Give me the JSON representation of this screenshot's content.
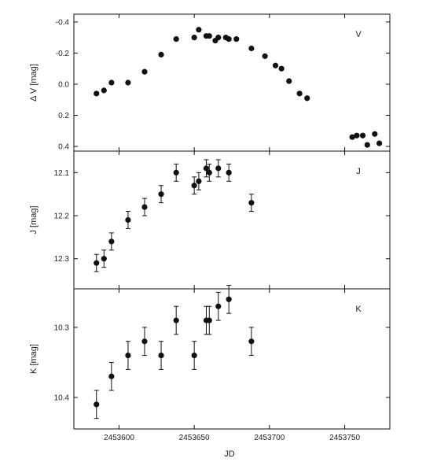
{
  "chart_data": [
    {
      "type": "scatter",
      "panel_label": "V",
      "ylabel": "Δ V [mag]",
      "xlabel": "",
      "y_inverted": true,
      "ylim": [
        0.43,
        -0.45
      ],
      "yticks": [
        -0.4,
        -0.2,
        0.0,
        0.2,
        0.4
      ],
      "ytick_labels": [
        "-0.4",
        "-0.2",
        "0.0",
        "0.2",
        "0.4"
      ],
      "error_bars": false,
      "series": [
        {
          "x": [
            2453585,
            2453590,
            2453595,
            2453606,
            2453617,
            2453628,
            2453638,
            2453650,
            2453653,
            2453658,
            2453660,
            2453664,
            2453666,
            2453671,
            2453673,
            2453678,
            2453688,
            2453697,
            2453704,
            2453708,
            2453713,
            2453720,
            2453725,
            2453755,
            2453758,
            2453762,
            2453765,
            2453770,
            2453773
          ],
          "y": [
            0.06,
            0.04,
            -0.01,
            -0.01,
            -0.08,
            -0.19,
            -0.29,
            -0.3,
            -0.35,
            -0.31,
            -0.31,
            -0.28,
            -0.3,
            -0.3,
            -0.29,
            -0.29,
            -0.23,
            -0.18,
            -0.12,
            -0.1,
            -0.02,
            0.06,
            0.09,
            0.34,
            0.33,
            0.33,
            0.39,
            0.32,
            0.38
          ],
          "yerr": []
        }
      ]
    },
    {
      "type": "scatter",
      "panel_label": "J",
      "ylabel": "J [mag]",
      "xlabel": "",
      "y_inverted": true,
      "ylim": [
        12.37,
        12.05
      ],
      "yticks": [
        12.1,
        12.2,
        12.3
      ],
      "ytick_labels": [
        "12.1",
        "12.2",
        "12.3"
      ],
      "error_bars": true,
      "series": [
        {
          "x": [
            2453585,
            2453590,
            2453595,
            2453606,
            2453617,
            2453628,
            2453638,
            2453650,
            2453653,
            2453658,
            2453660,
            2453666,
            2453673,
            2453688
          ],
          "y": [
            12.31,
            12.3,
            12.26,
            12.21,
            12.18,
            12.15,
            12.1,
            12.13,
            12.12,
            12.09,
            12.1,
            12.09,
            12.1,
            12.17
          ],
          "yerr": [
            0.02,
            0.02,
            0.02,
            0.02,
            0.02,
            0.02,
            0.02,
            0.02,
            0.02,
            0.02,
            0.02,
            0.02,
            0.02,
            0.02
          ]
        }
      ]
    },
    {
      "type": "scatter",
      "panel_label": "K",
      "ylabel": "K [mag]",
      "xlabel": "JD",
      "y_inverted": true,
      "ylim": [
        10.445,
        10.245
      ],
      "yticks": [
        10.3,
        10.4
      ],
      "ytick_labels": [
        "10.3",
        "10.4"
      ],
      "xticks": [
        2453600,
        2453650,
        2453700,
        2453750
      ],
      "xtick_labels": [
        "2453600",
        "2453650",
        "2453700",
        "2453750"
      ],
      "error_bars": true,
      "series": [
        {
          "x": [
            2453585,
            2453595,
            2453606,
            2453617,
            2453628,
            2453638,
            2453650,
            2453658,
            2453660,
            2453666,
            2453673,
            2453688
          ],
          "y": [
            10.41,
            10.37,
            10.34,
            10.32,
            10.34,
            10.29,
            10.34,
            10.29,
            10.29,
            10.27,
            10.26,
            10.32
          ],
          "yerr": [
            0.02,
            0.02,
            0.02,
            0.02,
            0.02,
            0.02,
            0.02,
            0.02,
            0.02,
            0.02,
            0.02,
            0.02
          ]
        }
      ]
    }
  ],
  "shared_xlim": [
    2453570,
    2453780
  ]
}
